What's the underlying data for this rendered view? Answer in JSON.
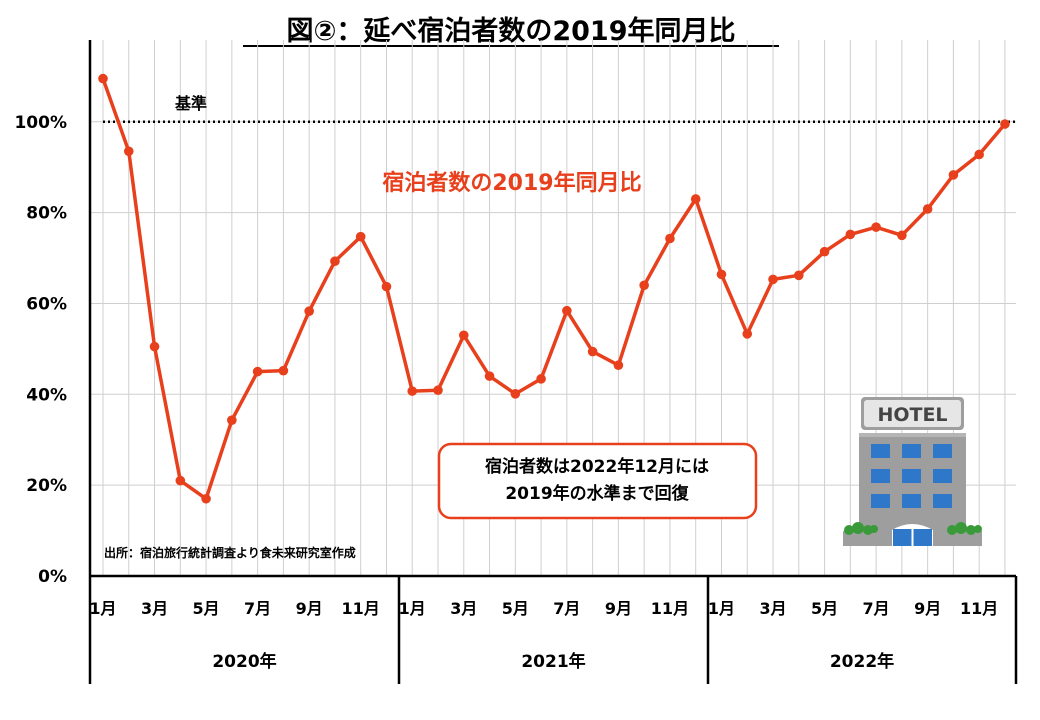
{
  "chart_data": {
    "type": "line",
    "title": "図②：延べ宿泊者数の2019年同月比",
    "series": [
      {
        "name": "宿泊者数の2019年同月比",
        "color": "#e8401c",
        "values": [
          109.5,
          93.5,
          50.5,
          21,
          17,
          34.3,
          45,
          45.2,
          58.3,
          69.3,
          74.7,
          63.7,
          40.7,
          40.9,
          53,
          44,
          40.1,
          43.4,
          58.4,
          49.4,
          46.4,
          64,
          74.3,
          83,
          66.4,
          53.3,
          65.3,
          66.2,
          71.4,
          75.2,
          76.8,
          75,
          80.8,
          88.3,
          92.8,
          99.5
        ]
      }
    ],
    "x_tick_labels": [
      "1月",
      "3月",
      "5月",
      "7月",
      "9月",
      "11月",
      "1月",
      "3月",
      "5月",
      "7月",
      "9月",
      "11月",
      "1月",
      "3月",
      "5月",
      "7月",
      "9月",
      "11月"
    ],
    "years": [
      "2020年",
      "2021年",
      "2022年"
    ],
    "y_tick_labels": [
      "0%",
      "20%",
      "40%",
      "60%",
      "80%",
      "100%"
    ],
    "y_ticks": [
      0,
      20,
      40,
      60,
      80,
      100
    ],
    "ylim": [
      0,
      118
    ],
    "grid": true,
    "reference_line": {
      "value": 100,
      "label": "基準"
    },
    "callout": [
      "宿泊者数は2022年12月には",
      "2019年の水準まで回復"
    ],
    "source": "出所：宿泊旅行統計調査より食未来研究室作成",
    "accent_color": "#e8401c",
    "hotel_sign": "HOTEL",
    "hotel_icon": "hotel-building-icon"
  }
}
